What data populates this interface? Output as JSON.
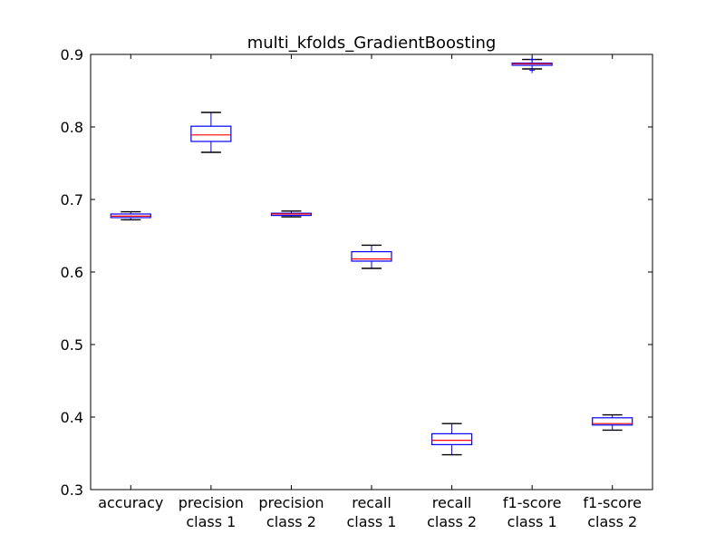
{
  "chart_data": {
    "type": "box",
    "title": "multi_kfolds_GradientBoosting",
    "xlabel": "",
    "ylabel": "",
    "ylim": [
      0.3,
      0.9
    ],
    "yticks": [
      "0.3",
      "0.4",
      "0.5",
      "0.6",
      "0.7",
      "0.8",
      "0.9"
    ],
    "grid": false,
    "categories": [
      [
        "accuracy"
      ],
      [
        "precision",
        "class 1"
      ],
      [
        "precision",
        "class 2"
      ],
      [
        "recall",
        "class 1"
      ],
      [
        "recall",
        "class 2"
      ],
      [
        "f1-score",
        "class 1"
      ],
      [
        "f1-score",
        "class 2"
      ]
    ],
    "boxes": [
      {
        "whisker_low": 0.672,
        "q1": 0.675,
        "median": 0.677,
        "q3": 0.68,
        "whisker_high": 0.683,
        "fliers": []
      },
      {
        "whisker_low": 0.765,
        "q1": 0.78,
        "median": 0.789,
        "q3": 0.801,
        "whisker_high": 0.82,
        "fliers": []
      },
      {
        "whisker_low": 0.676,
        "q1": 0.678,
        "median": 0.68,
        "q3": 0.681,
        "whisker_high": 0.684,
        "fliers": []
      },
      {
        "whisker_low": 0.605,
        "q1": 0.615,
        "median": 0.618,
        "q3": 0.628,
        "whisker_high": 0.637,
        "fliers": []
      },
      {
        "whisker_low": 0.348,
        "q1": 0.362,
        "median": 0.368,
        "q3": 0.377,
        "whisker_high": 0.391,
        "fliers": []
      },
      {
        "whisker_low": 0.88,
        "q1": 0.885,
        "median": 0.887,
        "q3": 0.888,
        "whisker_high": 0.893,
        "fliers": [
          0.878,
          0.893
        ]
      },
      {
        "whisker_low": 0.382,
        "q1": 0.389,
        "median": 0.391,
        "q3": 0.399,
        "whisker_high": 0.403,
        "fliers": []
      }
    ],
    "colors": {
      "box": "#0000ff",
      "median": "#ff0000",
      "whisker": "#0000ff",
      "cap": "#000000",
      "flier": "#0000ff",
      "axes": "#000000"
    }
  }
}
